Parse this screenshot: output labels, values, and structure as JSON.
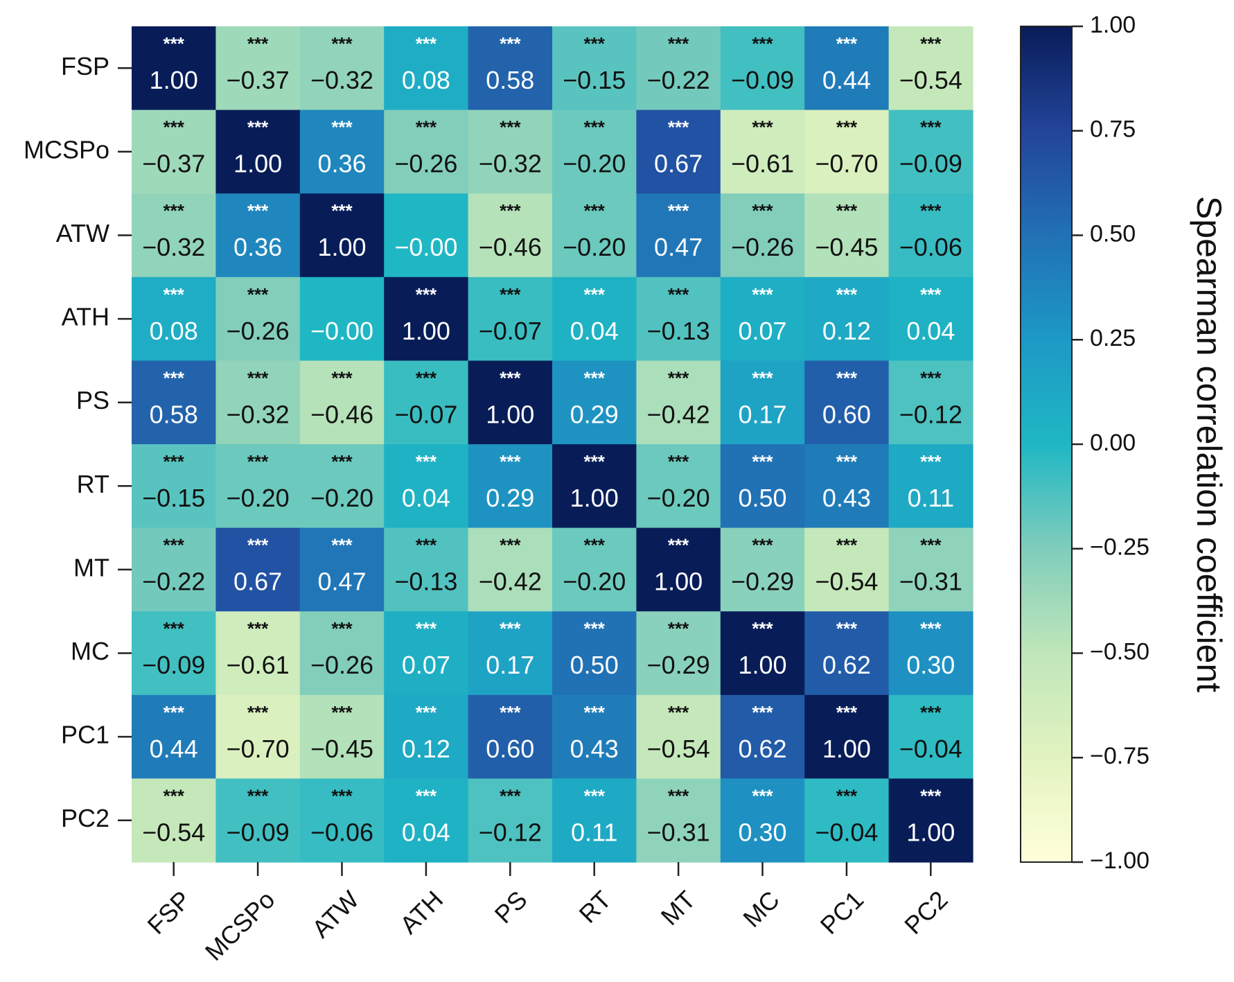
{
  "chart_data": {
    "type": "heatmap",
    "variables": [
      "FSP",
      "MCSPo",
      "ATW",
      "ATH",
      "PS",
      "RT",
      "MT",
      "MC",
      "PC1",
      "PC2"
    ],
    "matrix": [
      [
        1.0,
        -0.37,
        -0.32,
        0.08,
        0.58,
        -0.15,
        -0.22,
        -0.09,
        0.44,
        -0.54
      ],
      [
        -0.37,
        1.0,
        0.36,
        -0.26,
        -0.32,
        -0.2,
        0.67,
        -0.61,
        -0.7,
        -0.09
      ],
      [
        -0.32,
        0.36,
        1.0,
        -0.0,
        -0.46,
        -0.2,
        0.47,
        -0.26,
        -0.45,
        -0.06
      ],
      [
        0.08,
        -0.26,
        -0.0,
        1.0,
        -0.07,
        0.04,
        -0.13,
        0.07,
        0.12,
        0.04
      ],
      [
        0.58,
        -0.32,
        -0.46,
        -0.07,
        1.0,
        0.29,
        -0.42,
        0.17,
        0.6,
        -0.12
      ],
      [
        -0.15,
        -0.2,
        -0.2,
        0.04,
        0.29,
        1.0,
        -0.2,
        0.5,
        0.43,
        0.11
      ],
      [
        -0.22,
        0.67,
        0.47,
        -0.13,
        -0.42,
        -0.2,
        1.0,
        -0.29,
        -0.54,
        -0.31
      ],
      [
        -0.09,
        -0.61,
        -0.26,
        0.07,
        0.17,
        0.5,
        -0.29,
        1.0,
        0.62,
        0.3
      ],
      [
        0.44,
        -0.7,
        -0.45,
        0.12,
        0.6,
        0.43,
        -0.54,
        0.62,
        1.0,
        -0.04
      ],
      [
        -0.54,
        -0.09,
        -0.06,
        0.04,
        -0.12,
        0.11,
        -0.31,
        0.3,
        -0.04,
        1.0
      ]
    ],
    "labels": [
      [
        "1.00",
        "−0.37",
        "−0.32",
        "0.08",
        "0.58",
        "−0.15",
        "−0.22",
        "−0.09",
        "0.44",
        "−0.54"
      ],
      [
        "−0.37",
        "1.00",
        "0.36",
        "−0.26",
        "−0.32",
        "−0.20",
        "0.67",
        "−0.61",
        "−0.70",
        "−0.09"
      ],
      [
        "−0.32",
        "0.36",
        "1.00",
        "−0.00",
        "−0.46",
        "−0.20",
        "0.47",
        "−0.26",
        "−0.45",
        "−0.06"
      ],
      [
        "0.08",
        "−0.26",
        "−0.00",
        "1.00",
        "−0.07",
        "0.04",
        "−0.13",
        "0.07",
        "0.12",
        "0.04"
      ],
      [
        "0.58",
        "−0.32",
        "−0.46",
        "−0.07",
        "1.00",
        "0.29",
        "−0.42",
        "0.17",
        "0.60",
        "−0.12"
      ],
      [
        "−0.15",
        "−0.20",
        "−0.20",
        "0.04",
        "0.29",
        "1.00",
        "−0.20",
        "0.50",
        "0.43",
        "0.11"
      ],
      [
        "−0.22",
        "0.67",
        "0.47",
        "−0.13",
        "−0.42",
        "−0.20",
        "1.00",
        "−0.29",
        "−0.54",
        "−0.31"
      ],
      [
        "−0.09",
        "−0.61",
        "−0.26",
        "0.07",
        "0.17",
        "0.50",
        "−0.29",
        "1.00",
        "0.62",
        "0.30"
      ],
      [
        "0.44",
        "−0.70",
        "−0.45",
        "0.12",
        "0.60",
        "0.43",
        "−0.54",
        "0.62",
        "1.00",
        "−0.04"
      ],
      [
        "−0.54",
        "−0.09",
        "−0.06",
        "0.04",
        "−0.12",
        "0.11",
        "−0.31",
        "0.30",
        "−0.04",
        "1.00"
      ]
    ],
    "significance": [
      [
        "***",
        "***",
        "***",
        "***",
        "***",
        "***",
        "***",
        "***",
        "***",
        "***"
      ],
      [
        "***",
        "***",
        "***",
        "***",
        "***",
        "***",
        "***",
        "***",
        "***",
        "***"
      ],
      [
        "***",
        "***",
        "***",
        "",
        "***",
        "***",
        "***",
        "***",
        "***",
        "***"
      ],
      [
        "***",
        "***",
        "",
        "***",
        "***",
        "***",
        "***",
        "***",
        "***",
        "***"
      ],
      [
        "***",
        "***",
        "***",
        "***",
        "***",
        "***",
        "***",
        "***",
        "***",
        "***"
      ],
      [
        "***",
        "***",
        "***",
        "***",
        "***",
        "***",
        "***",
        "***",
        "***",
        "***"
      ],
      [
        "***",
        "***",
        "***",
        "***",
        "***",
        "***",
        "***",
        "***",
        "***",
        "***"
      ],
      [
        "***",
        "***",
        "***",
        "***",
        "***",
        "***",
        "***",
        "***",
        "***",
        "***"
      ],
      [
        "***",
        "***",
        "***",
        "***",
        "***",
        "***",
        "***",
        "***",
        "***",
        "***"
      ],
      [
        "***",
        "***",
        "***",
        "***",
        "***",
        "***",
        "***",
        "***",
        "***",
        "***"
      ]
    ],
    "colorbar": {
      "label": "Spearman correlation coefficient",
      "range": [
        -1.0,
        1.0
      ],
      "ticks": [
        1.0,
        0.75,
        0.5,
        0.25,
        0.0,
        -0.25,
        -0.5,
        -0.75,
        -1.0
      ],
      "tick_labels": [
        "1.00",
        "0.75",
        "0.50",
        "0.25",
        "0.00",
        "−0.25",
        "−0.50",
        "−0.75",
        "−1.00"
      ],
      "colormap": "YlGnBu",
      "stops": [
        {
          "v": -1.0,
          "color": "#ffffd9"
        },
        {
          "v": -0.75,
          "color": "#e2f3c1"
        },
        {
          "v": -0.5,
          "color": "#c0e6b9"
        },
        {
          "v": -0.25,
          "color": "#7fcdbb"
        },
        {
          "v": 0.0,
          "color": "#1fb7c4"
        },
        {
          "v": 0.25,
          "color": "#1d99c5"
        },
        {
          "v": 0.5,
          "color": "#2171b5"
        },
        {
          "v": 0.75,
          "color": "#23449a"
        },
        {
          "v": 1.0,
          "color": "#081d58"
        }
      ]
    },
    "text_colors": {
      "light": "#ffffff",
      "dark": "#111111"
    },
    "xlabel": "",
    "ylabel": ""
  }
}
